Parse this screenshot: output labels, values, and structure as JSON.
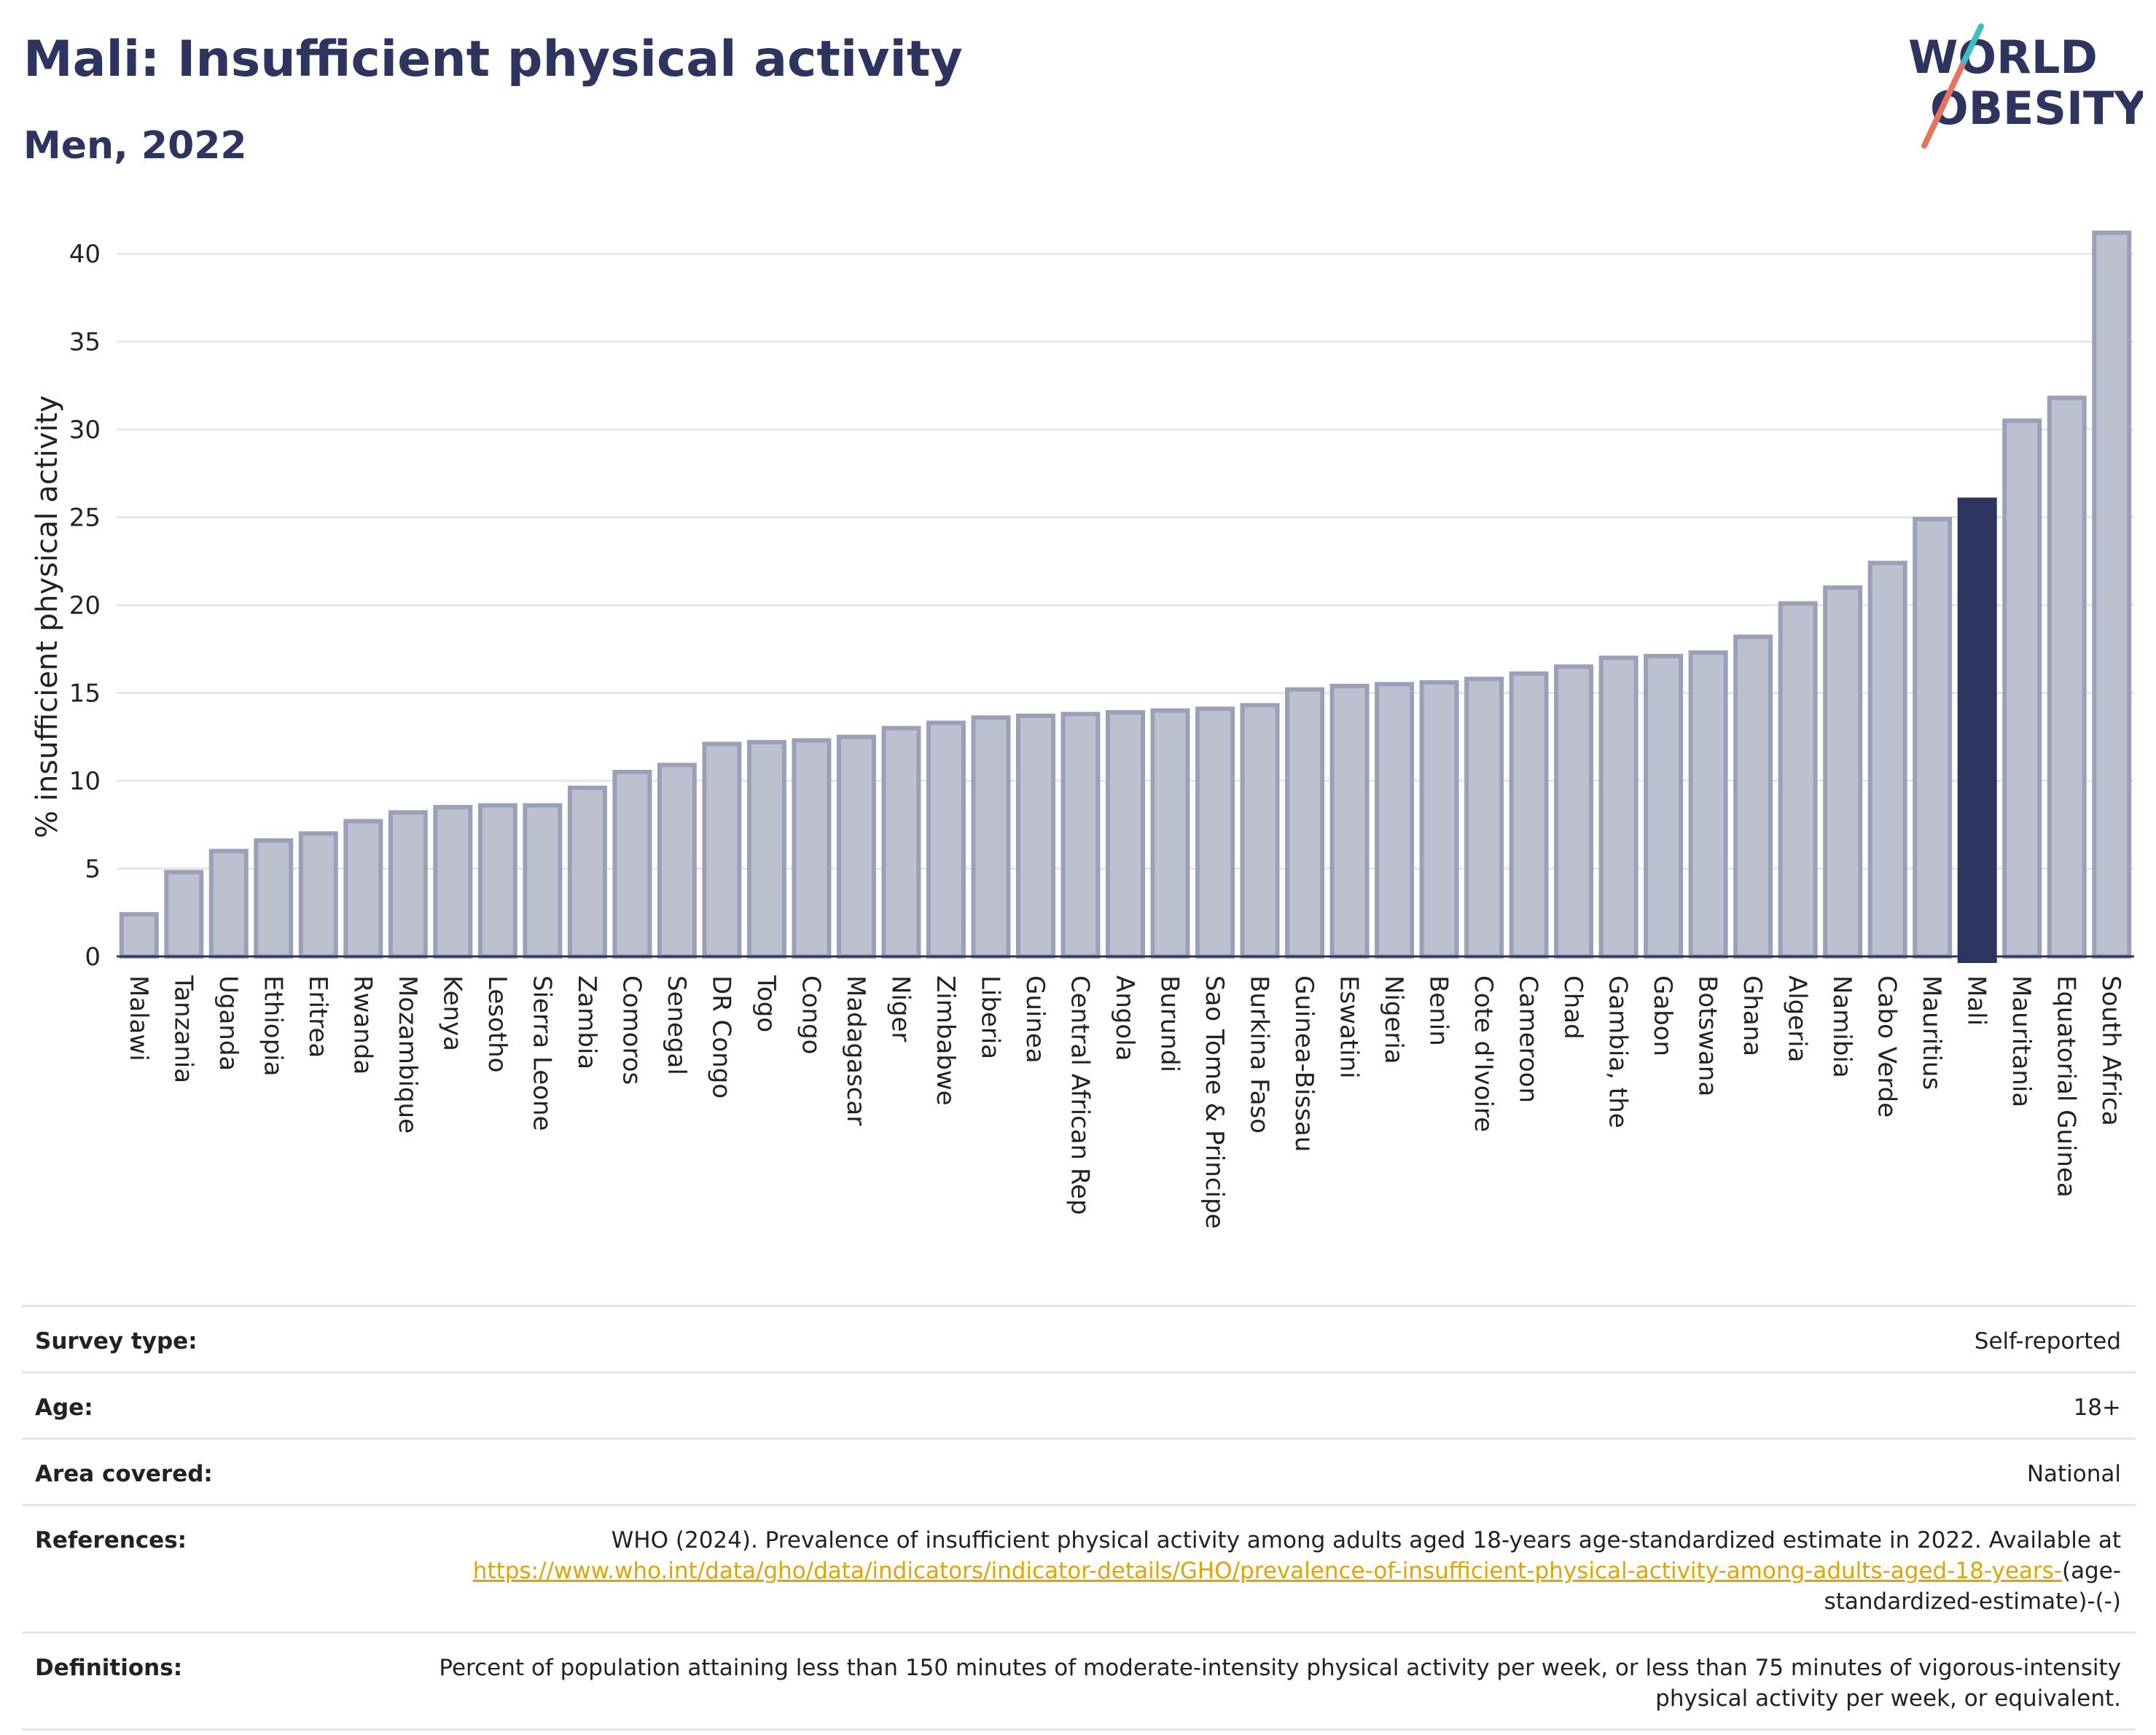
{
  "title": "Mali: Insufficient physical activity",
  "subtitle": "Men, 2022",
  "logo": {
    "line1": "WORLD",
    "line2": "OBESITY"
  },
  "chart_data": {
    "type": "bar",
    "ylabel": "% insufficient physical activity",
    "ylim": [
      0,
      42
    ],
    "yticks": [
      0,
      5,
      10,
      15,
      20,
      25,
      30,
      35,
      40
    ],
    "grid": true,
    "highlight": "Mali",
    "colors": {
      "bar": "#bcc0cf",
      "bar_border": "#9aa0b8",
      "highlight": "#2b3560",
      "grid": "#e6e6e6"
    },
    "categories": [
      "Malawi",
      "Tanzania",
      "Uganda",
      "Ethiopia",
      "Eritrea",
      "Rwanda",
      "Mozambique",
      "Kenya",
      "Lesotho",
      "Sierra Leone",
      "Zambia",
      "Comoros",
      "Senegal",
      "DR Congo",
      "Togo",
      "Congo",
      "Madagascar",
      "Niger",
      "Zimbabwe",
      "Liberia",
      "Guinea",
      "Central African Rep",
      "Angola",
      "Burundi",
      "Sao Tome & Principe",
      "Burkina Faso",
      "Guinea-Bissau",
      "Eswatini",
      "Nigeria",
      "Benin",
      "Cote d'Ivoire",
      "Cameroon",
      "Chad",
      "Gambia, the",
      "Gabon",
      "Botswana",
      "Ghana",
      "Algeria",
      "Namibia",
      "Cabo Verde",
      "Mauritius",
      "Mali",
      "Mauritania",
      "Equatorial Guinea",
      "South Africa"
    ],
    "values": [
      2.4,
      4.8,
      6.0,
      6.6,
      7.0,
      7.7,
      8.2,
      8.5,
      8.6,
      8.6,
      9.6,
      10.5,
      10.9,
      12.1,
      12.2,
      12.3,
      12.5,
      13.0,
      13.3,
      13.6,
      13.7,
      13.8,
      13.9,
      14.0,
      14.1,
      14.3,
      15.2,
      15.4,
      15.5,
      15.6,
      15.8,
      16.1,
      16.5,
      17.0,
      17.1,
      17.3,
      18.2,
      20.1,
      21.0,
      22.4,
      24.9,
      26.0,
      30.5,
      31.8,
      41.2
    ]
  },
  "meta": [
    {
      "key": "Survey type:",
      "value": "Self-reported"
    },
    {
      "key": "Age:",
      "value": "18+"
    },
    {
      "key": "Area covered:",
      "value": "National"
    },
    {
      "key": "References:",
      "value": "WHO (2024). Prevalence of insufficient physical activity among adults aged 18-years age-standardized estimate in 2022. Available at",
      "link": "https://www.who.int/data/gho/data/indicators/indicator-details/GHO/prevalence-of-insufficient-physical-activity-among-adults-aged-18-years-",
      "link_suffix": "(age-standardized-estimate)-(-)"
    },
    {
      "key": "Definitions:",
      "value": "Percent of population attaining less than 150 minutes of moderate-intensity physical activity per week, or less than 75 minutes of vigorous-intensity physical activity per week, or equivalent."
    }
  ]
}
